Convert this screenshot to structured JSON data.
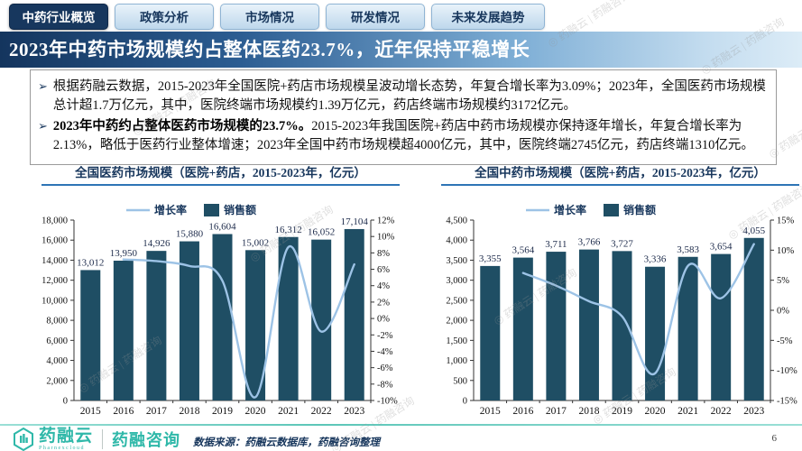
{
  "tabs": [
    {
      "label": "中药行业概览",
      "active": true
    },
    {
      "label": "政策分析",
      "active": false
    },
    {
      "label": "市场情况",
      "active": false
    },
    {
      "label": "研发情况",
      "active": false
    },
    {
      "label": "未来发展趋势",
      "active": false,
      "wide": true
    }
  ],
  "banner": {
    "title": "2023年中药市场规模约占整体医药23.7%，近年保持平稳增长"
  },
  "bullets": [
    {
      "bold": "",
      "text": "根据药融云数据，2015-2023年全国医院+药店市场规模呈波动增长态势，年复合增长率为3.09%；2023年，全国医药市场规模总计超1.7万亿元，其中，医院终端市场规模约1.39万亿元，药店终端市场规模约3172亿元。"
    },
    {
      "bold": "2023年中药约占整体医药市场规模的23.7%。",
      "text": "2015-2023年我国医院+药店中药市场规模亦保持逐年增长，年复合增长率为2.13%，略低于医药行业整体增速；2023年全国中药市场规模超4000亿元，其中，医院终端2745亿元，药店终端1310亿元。"
    }
  ],
  "chart_data": [
    {
      "type": "bar",
      "title": "全国医药市场规模（医院+药店，2015-2023年，亿元）",
      "categories": [
        "2015",
        "2016",
        "2017",
        "2018",
        "2019",
        "2020",
        "2021",
        "2022",
        "2023"
      ],
      "series": [
        {
          "name": "销售额",
          "type": "bar",
          "values": [
            13012,
            13950,
            14926,
            15880,
            16604,
            15002,
            16312,
            16052,
            17104
          ]
        },
        {
          "name": "增长率",
          "type": "line",
          "unit": "%",
          "values": [
            null,
            7.2,
            7.0,
            6.4,
            4.6,
            -9.6,
            8.7,
            -1.6,
            6.6
          ]
        }
      ],
      "left_axis": {
        "min": 0,
        "max": 18000,
        "step": 2000
      },
      "right_axis": {
        "min": -10,
        "max": 12,
        "step": 2,
        "suffix": "%"
      },
      "legend": {
        "line_label": "增长率",
        "bar_label": "销售额"
      },
      "grid": false,
      "legend_position": "top-left"
    },
    {
      "type": "bar",
      "title": "全国中药市场规模（医院+药店，2015-2023年，亿元）",
      "categories": [
        "2015",
        "2016",
        "2017",
        "2018",
        "2019",
        "2020",
        "2021",
        "2022",
        "2023"
      ],
      "series": [
        {
          "name": "销售额",
          "type": "bar",
          "values": [
            3355,
            3564,
            3711,
            3766,
            3727,
            3336,
            3583,
            3654,
            4055
          ]
        },
        {
          "name": "增长率",
          "type": "line",
          "unit": "%",
          "values": [
            null,
            6.2,
            4.1,
            1.5,
            -1.0,
            -10.5,
            7.4,
            2.0,
            11.0
          ]
        }
      ],
      "left_axis": {
        "min": 0,
        "max": 4500,
        "step": 500
      },
      "right_axis": {
        "min": -15,
        "max": 15,
        "step": 5,
        "suffix": "%"
      },
      "legend": {
        "line_label": "增长率",
        "bar_label": "销售额"
      },
      "grid": false,
      "legend_position": "top-left"
    }
  ],
  "colors": {
    "bar": "#1f4e64",
    "line": "#9dc3e6",
    "axis": "#333333",
    "navy_text": "#17365c",
    "banner_dark": "#14355e",
    "teal": "#2fb8a9",
    "title_underline": "#2e75b6"
  },
  "footer": {
    "brand": "药融云",
    "brand_sub": "Pharnexcloud",
    "brand2": "药融咨询",
    "source": "数据来源：药融云数据库，药融咨询整理",
    "page": "6"
  },
  "watermark_text": "药融云 | 药融咨询"
}
